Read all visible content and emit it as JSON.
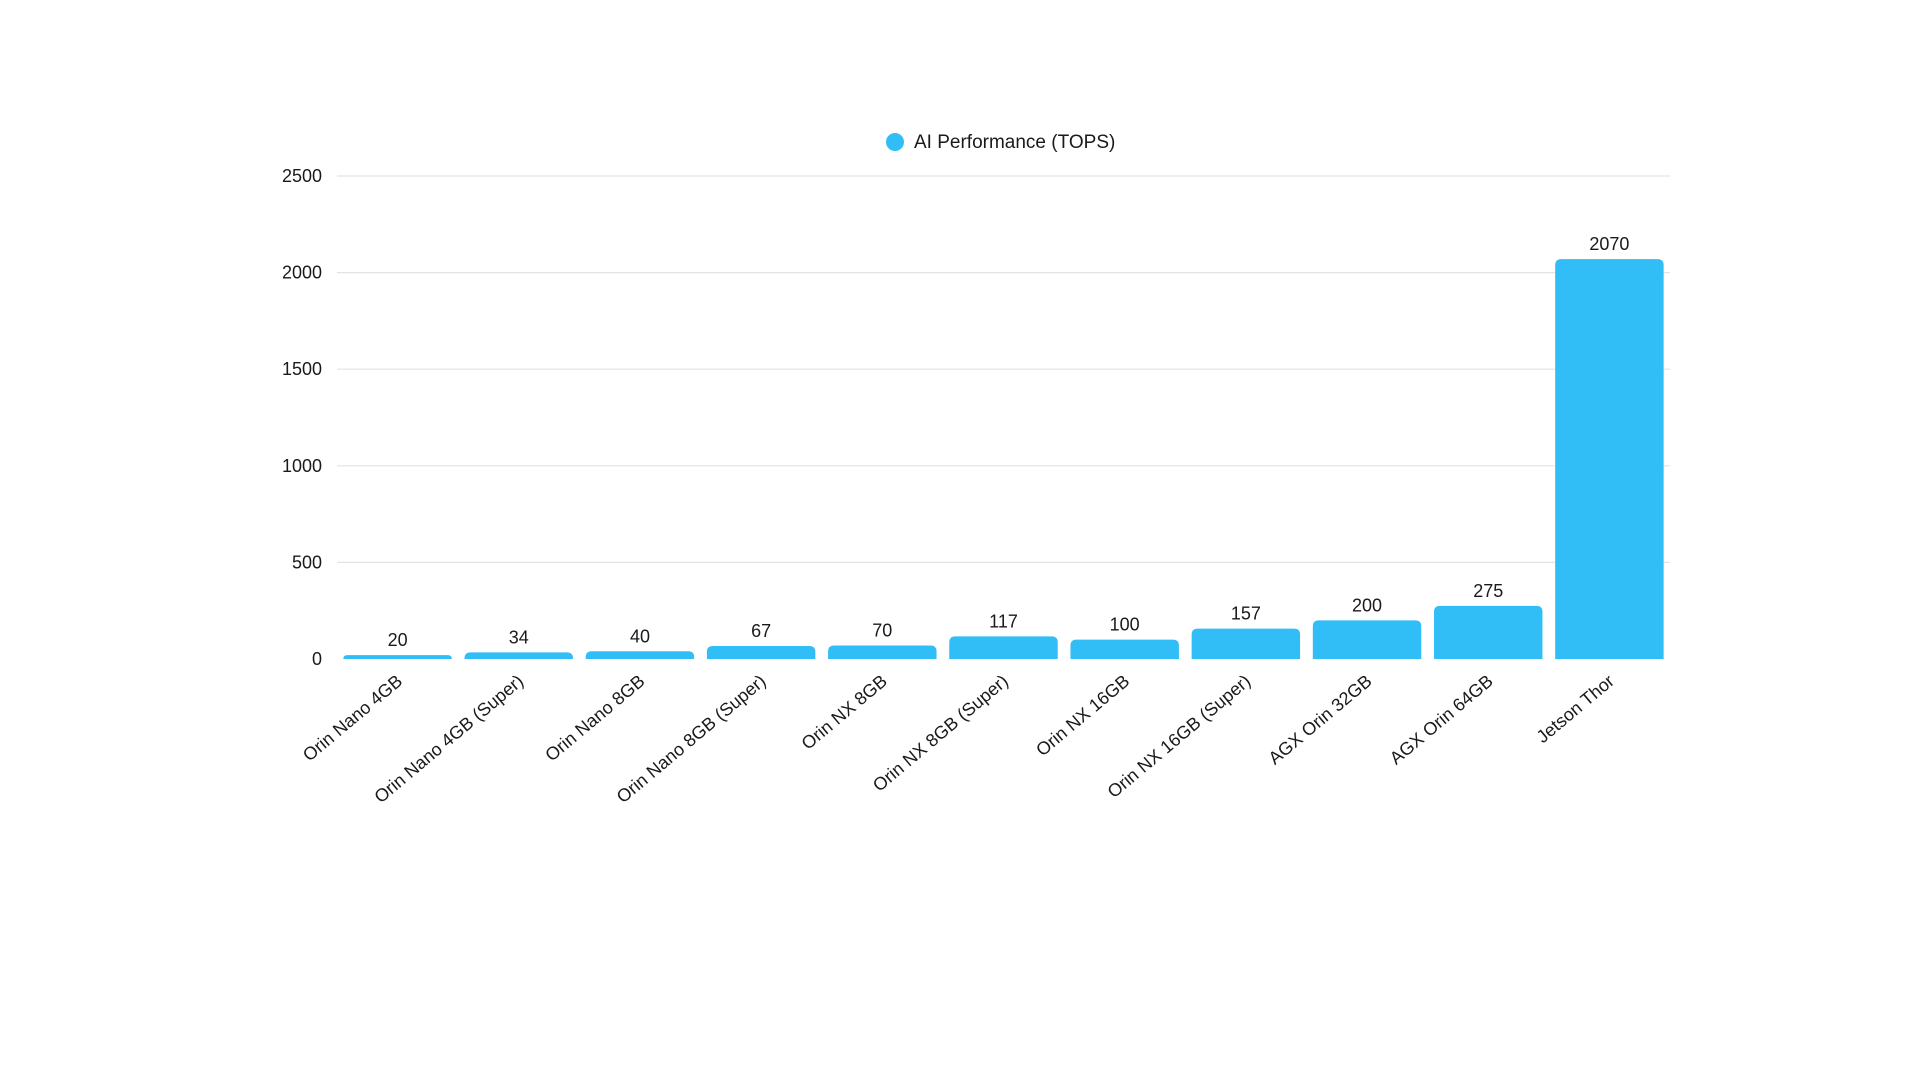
{
  "chart_data": {
    "type": "bar",
    "title": "",
    "xlabel": "",
    "ylabel": "",
    "categories": [
      "Orin Nano 4GB",
      "Orin Nano 4GB (Super)",
      "Orin Nano 8GB",
      "Orin Nano 8GB (Super)",
      "Orin NX 8GB",
      "Orin NX 8GB (Super)",
      "Orin NX 16GB",
      "Orin NX 16GB (Super)",
      "AGX Orin 32GB",
      "AGX Orin 64GB",
      "Jetson Thor"
    ],
    "series": [
      {
        "name": "AI Performance (TOPS)",
        "color": "#31bdf6",
        "values": [
          20,
          34,
          40,
          67,
          70,
          117,
          100,
          157,
          200,
          275,
          2070
        ]
      }
    ],
    "ylim": [
      0,
      2500
    ],
    "yticks": [
      "0",
      "500",
      "1000",
      "1500",
      "2000",
      "2500"
    ],
    "grid": true,
    "legend_position": "top-center",
    "data_labels": true
  }
}
